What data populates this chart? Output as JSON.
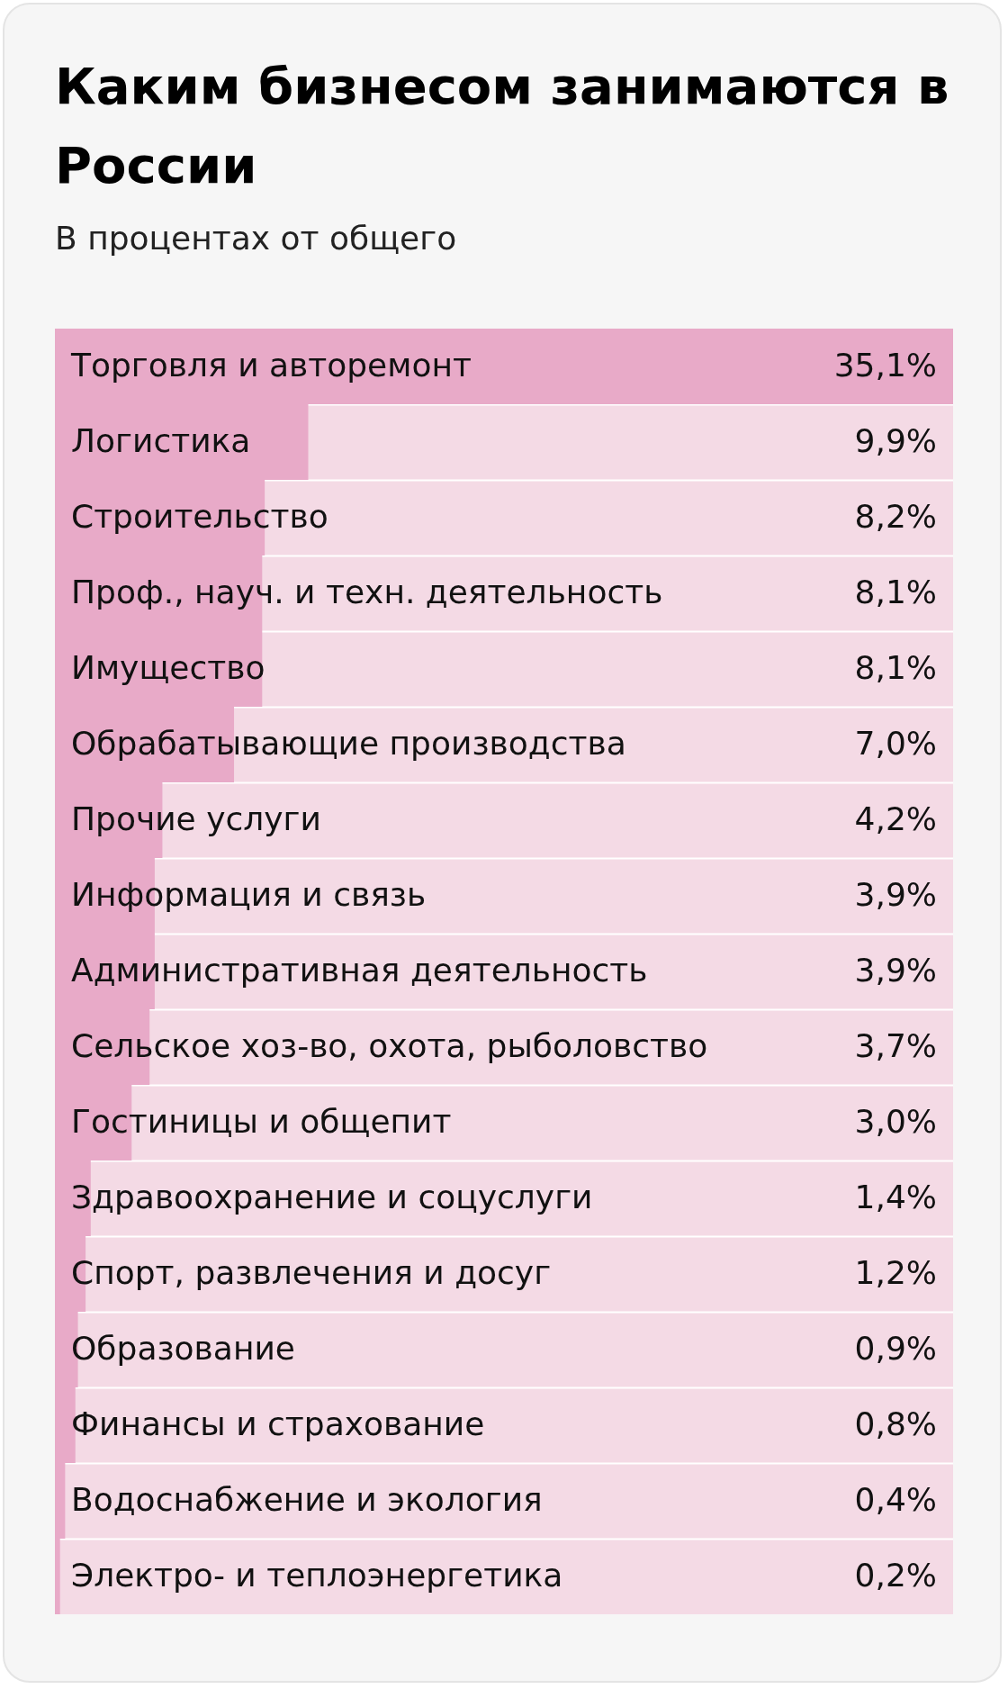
{
  "chart_data": {
    "type": "bar",
    "orientation": "horizontal",
    "title": "Каким бизнесом занимаются в России",
    "subtitle": "В процентах от общего",
    "categories": [
      "Торговля и авторемонт",
      "Логистика",
      "Строительство",
      "Проф., науч. и техн. деятельность",
      "Имущество",
      "Обрабатывающие производства",
      "Прочие услуги",
      "Информация и связь",
      "Административная деятельность",
      "Сельское хоз-во, охота, рыболовство",
      "Гостиницы и общепит",
      "Здравоохранение и соцуслуги",
      "Спорт, развлечения и досуг",
      "Образование",
      "Финансы и страхование",
      "Водоснабжение и экология",
      "Электро- и теплоэнергетика"
    ],
    "values": [
      35.1,
      9.9,
      8.2,
      8.1,
      8.1,
      7.0,
      4.2,
      3.9,
      3.9,
      3.7,
      3.0,
      1.4,
      1.2,
      0.9,
      0.8,
      0.4,
      0.2
    ],
    "value_labels": [
      "35,1%",
      "9,9%",
      "8,2%",
      "8,1%",
      "8,1%",
      "7,0%",
      "4,2%",
      "3,9%",
      "3,9%",
      "3,7%",
      "3,0%",
      "1,4%",
      "1,2%",
      "0,9%",
      "0,8%",
      "0,4%",
      "0,2%"
    ],
    "color": "#e8aac8",
    "xlim": [
      0,
      35.1
    ],
    "tick_labels": false
  }
}
